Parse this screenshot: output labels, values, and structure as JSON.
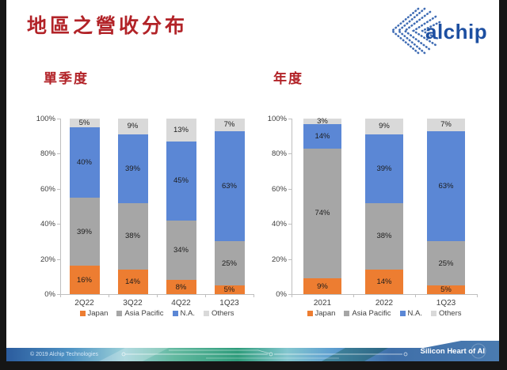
{
  "slide": {
    "title": "地區之營收分布",
    "logo_text": "alchip",
    "footer": {
      "copyright": "© 2019 Alchip Technologies",
      "tagline": "Silicon Heart of  AI"
    },
    "colors": {
      "title_red": "#b22328",
      "brand_blue": "#1d4fa1",
      "japan_orange": "#ED7D31",
      "asia_pacific_gray": "#A6A6A6",
      "na_blue": "#5B87D5",
      "others_lightgray": "#D9D9D9"
    }
  },
  "chart_data": [
    {
      "type": "bar",
      "stacked": true,
      "title": "單季度",
      "categories": [
        "2Q22",
        "3Q22",
        "4Q22",
        "1Q23"
      ],
      "series": [
        {
          "name": "Japan",
          "color": "#ED7D31",
          "values": [
            16,
            14,
            8,
            5
          ]
        },
        {
          "name": "Asia Pacific",
          "color": "#A6A6A6",
          "values": [
            39,
            38,
            34,
            25
          ]
        },
        {
          "name": "N.A.",
          "color": "#5B87D5",
          "values": [
            40,
            39,
            45,
            63
          ]
        },
        {
          "name": "Others",
          "color": "#D9D9D9",
          "values": [
            5,
            9,
            13,
            7
          ]
        }
      ],
      "xlabel": "",
      "ylabel": "",
      "ylim": [
        0,
        100
      ],
      "yticks": [
        "0%",
        "20%",
        "40%",
        "60%",
        "80%",
        "100%"
      ],
      "grid": false,
      "legend_position": "bottom",
      "label_suffix": "%"
    },
    {
      "type": "bar",
      "stacked": true,
      "title": "年度",
      "categories": [
        "2021",
        "2022",
        "1Q23"
      ],
      "series": [
        {
          "name": "Japan",
          "color": "#ED7D31",
          "values": [
            9,
            14,
            5
          ]
        },
        {
          "name": "Asia Pacific",
          "color": "#A6A6A6",
          "values": [
            74,
            38,
            25
          ]
        },
        {
          "name": "N.A.",
          "color": "#5B87D5",
          "values": [
            14,
            39,
            63
          ]
        },
        {
          "name": "Others",
          "color": "#D9D9D9",
          "values": [
            3,
            9,
            7
          ]
        }
      ],
      "xlabel": "",
      "ylabel": "",
      "ylim": [
        0,
        100
      ],
      "yticks": [
        "0%",
        "20%",
        "40%",
        "60%",
        "80%",
        "100%"
      ],
      "grid": false,
      "legend_position": "bottom",
      "label_suffix": "%"
    }
  ]
}
